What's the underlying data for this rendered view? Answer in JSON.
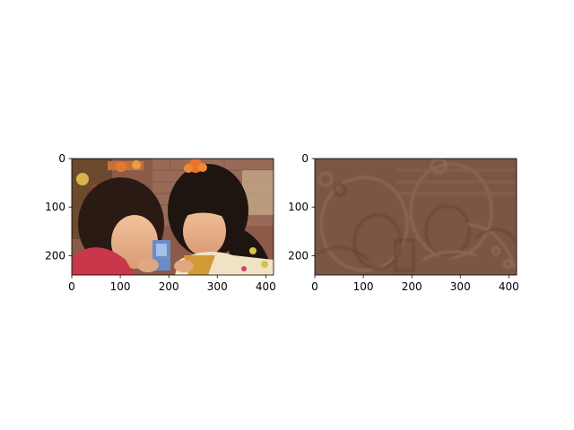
{
  "chart_data": [
    {
      "type": "image",
      "content": "photo of two girls leaning over a small box",
      "image_width": 416,
      "image_height": 240,
      "xlim": [
        0,
        416
      ],
      "ylim": [
        240,
        0
      ],
      "xticks": [
        0,
        100,
        200,
        300,
        400
      ],
      "yticks": [
        0,
        100,
        200
      ],
      "title": "",
      "xlabel": "",
      "ylabel": ""
    },
    {
      "type": "image",
      "content": "embossed brown filtered version of the same photo",
      "image_width": 416,
      "image_height": 240,
      "xlim": [
        0,
        416
      ],
      "ylim": [
        240,
        0
      ],
      "xticks": [
        0,
        100,
        200,
        300,
        400
      ],
      "yticks": [
        0,
        100,
        200
      ],
      "title": "",
      "xlabel": "",
      "ylabel": ""
    }
  ],
  "colors": {
    "photo_background": "#7a4a3a",
    "emboss_base": "#7b5644"
  }
}
